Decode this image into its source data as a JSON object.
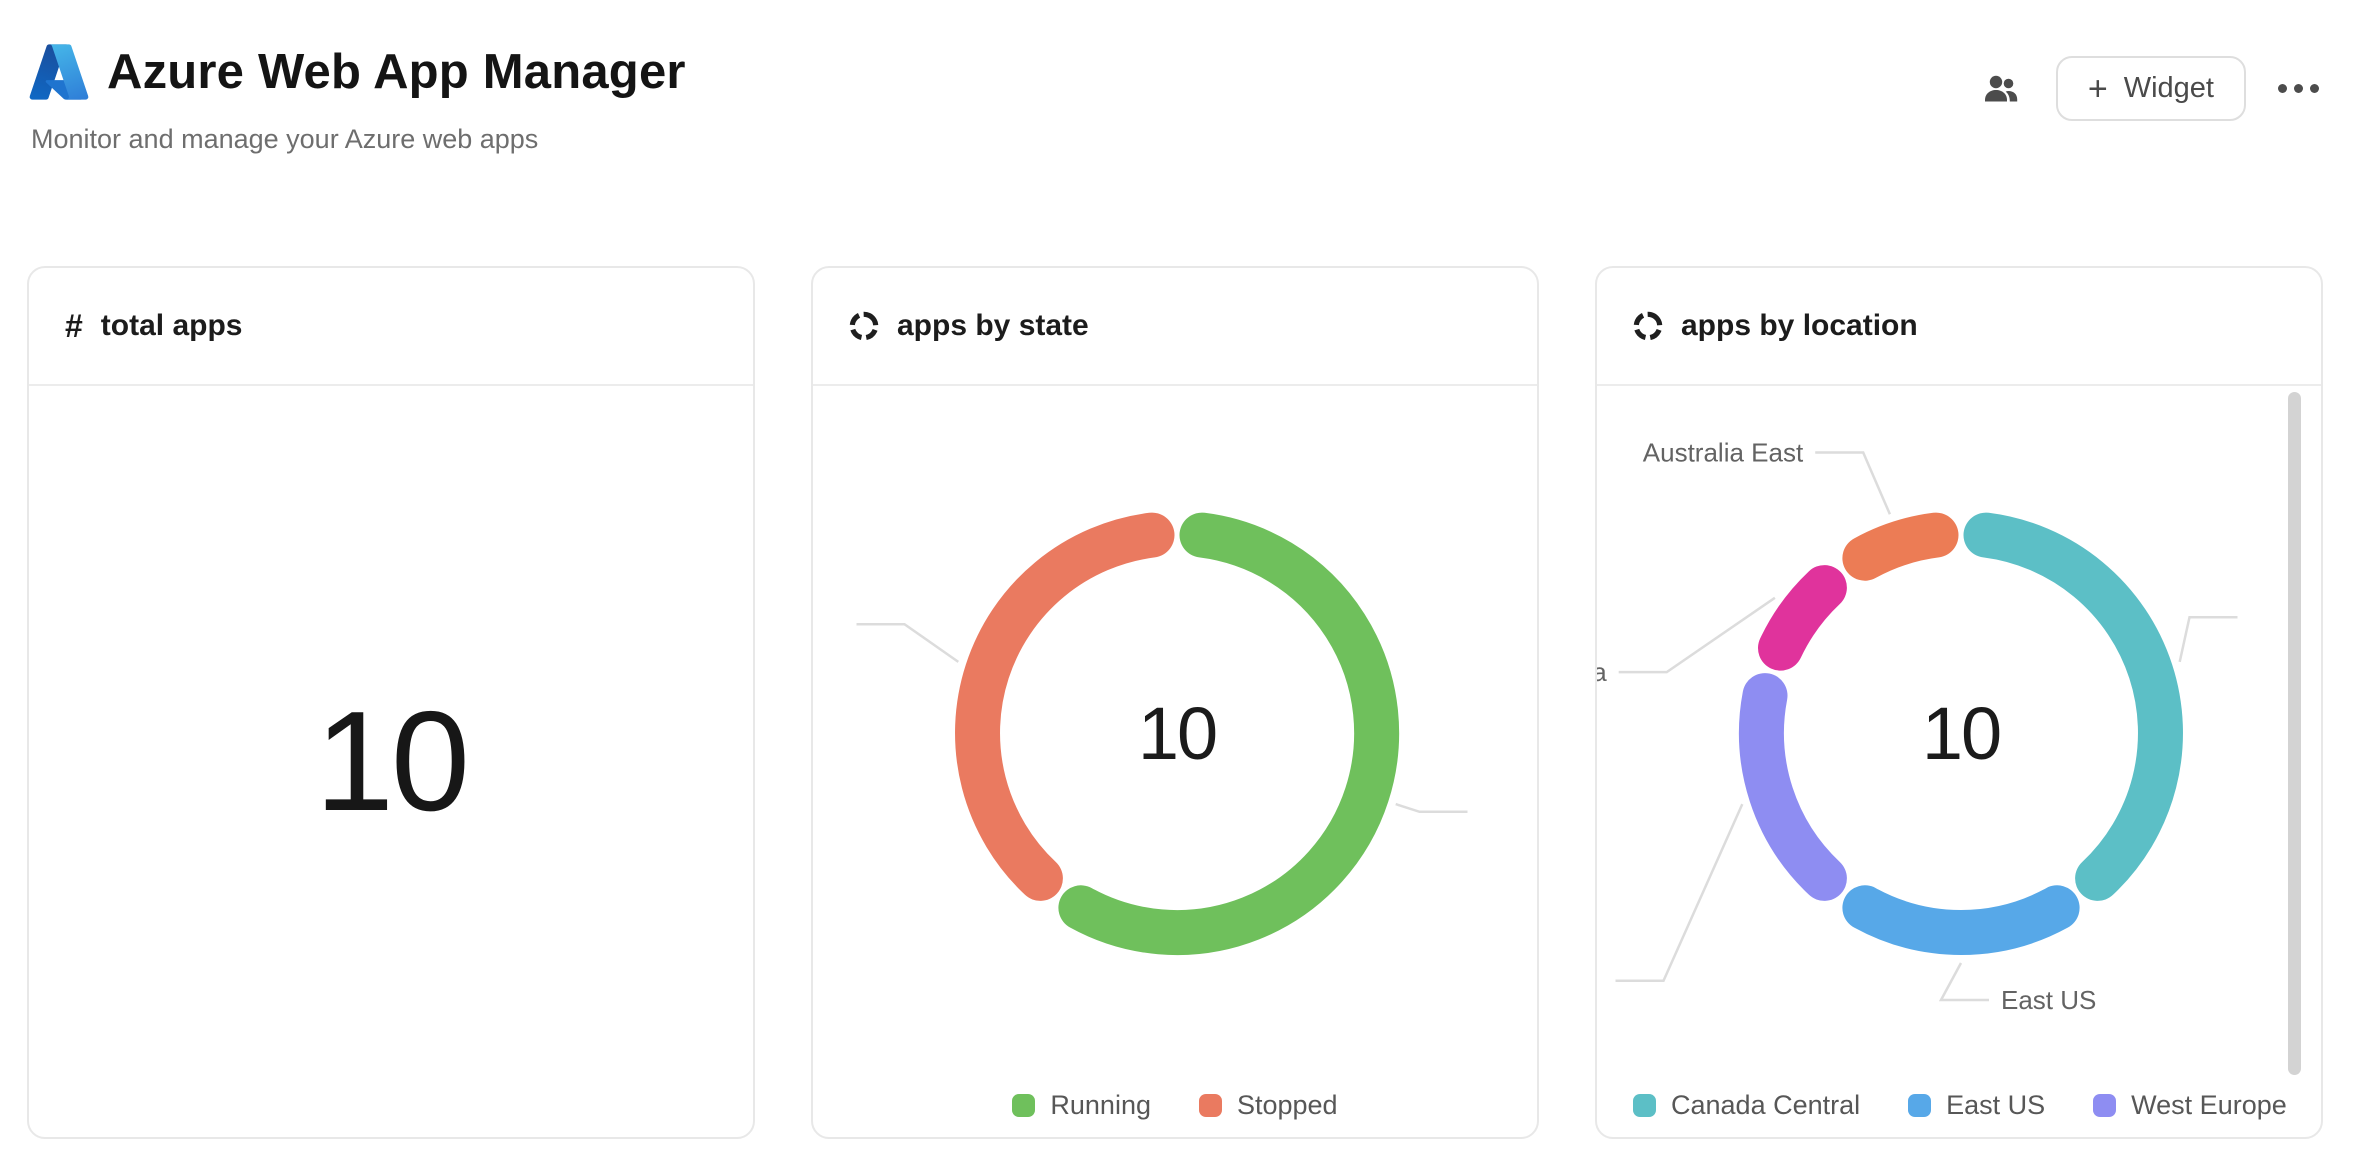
{
  "header": {
    "title": "Azure Web App Manager",
    "subtitle": "Monitor and manage your Azure web apps",
    "actions": {
      "team_icon": "people-icon",
      "widget_label": "Widget",
      "plus_glyph": "+",
      "more_icon": "ellipsis-icon"
    }
  },
  "cards": [
    {
      "title": "total apps",
      "icon": "hash-icon",
      "icon_glyph": "#",
      "value": "10"
    },
    {
      "title": "apps by state",
      "icon": "donut-chart-icon"
    },
    {
      "title": "apps by location",
      "icon": "donut-chart-icon"
    }
  ],
  "chart_data": [
    {
      "type": "pie",
      "variant": "donut",
      "title": "apps by state",
      "center_label": "10",
      "total": 10,
      "legend_position": "bottom-center",
      "legend": [
        "Running",
        "Stopped"
      ],
      "slices": [
        {
          "name": "Running",
          "value": 6,
          "color": "#6fc05c",
          "label": "",
          "shift": [
            0,
            0
          ]
        },
        {
          "name": "Stopped",
          "value": 4,
          "color": "#ea7a60",
          "label": "",
          "shift": [
            -30,
            -30
          ]
        }
      ]
    },
    {
      "type": "pie",
      "variant": "donut",
      "title": "apps by location",
      "center_label": "10",
      "total": 10,
      "legend_position": "bottom-left",
      "legend": [
        "Canada Central",
        "East US",
        "West Europe"
      ],
      "slices": [
        {
          "name": "Canada Central",
          "value": 4,
          "color": "#5cbfc6",
          "label": "",
          "shift": [
            -14,
            -37
          ]
        },
        {
          "name": "East US",
          "value": 2,
          "color": "#57a8e8",
          "label": "East US",
          "shift": [
            -20,
            12
          ]
        },
        {
          "name": "West Europe",
          "value": 2,
          "color": "#8e8df2",
          "label": "",
          "shift": [
            -55,
            169
          ]
        },
        {
          "name": "",
          "value": 1,
          "color": "#e0339c",
          "label": "a",
          "shift": [
            -88,
            89
          ]
        },
        {
          "name": "Australia East",
          "value": 1,
          "color": "#ec7c55",
          "label": "Australia East",
          "shift": [
            -19,
            -38
          ]
        }
      ]
    }
  ]
}
